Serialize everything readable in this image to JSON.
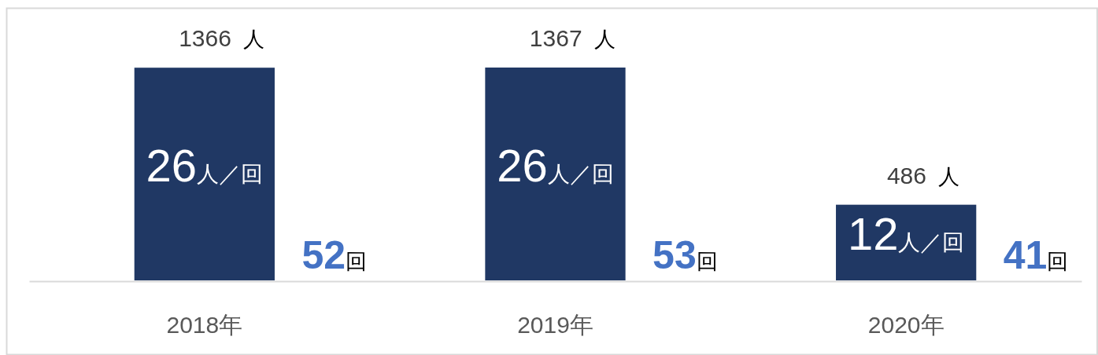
{
  "chart_data": {
    "type": "bar",
    "categories": [
      "2018年",
      "2019年",
      "2020年"
    ],
    "values": [
      1366,
      1367,
      486
    ],
    "color": "#203864",
    "value_labels": [
      "1366 人",
      "1367 人",
      "486 人"
    ],
    "annotations": [
      "26人／回",
      "52回",
      "26人／回",
      "53回",
      "12人／回",
      "41回"
    ]
  }
}
